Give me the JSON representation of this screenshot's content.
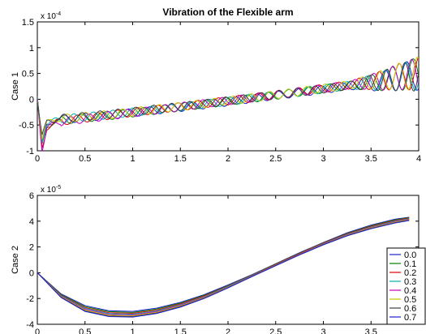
{
  "chart_data": [
    {
      "type": "line",
      "title": "Vibration of the Flexible arm",
      "ylabel": "Case 1",
      "xlabel": "",
      "xlim": [
        0,
        4
      ],
      "ylim": [
        -1,
        1.5
      ],
      "y_exponent_label": {
        "base": "x 10",
        "exp": "-4"
      },
      "x_ticks": [
        "0",
        "0.5",
        "1",
        "1.5",
        "2",
        "2.5",
        "3",
        "3.5",
        "4"
      ],
      "y_ticks": [
        "-1",
        "-0.5",
        "0",
        "0.5",
        "1",
        "1.5"
      ],
      "series": [
        {
          "color": "#1f1fcf",
          "x": [
            0,
            0.05,
            0.1,
            0.2,
            0.4,
            0.8,
            1.2,
            1.6,
            2.0,
            2.4,
            2.8,
            3.2,
            3.6,
            3.8,
            4.0
          ],
          "y": [
            0,
            -0.85,
            -0.5,
            -0.4,
            -0.37,
            -0.3,
            -0.22,
            -0.14,
            -0.05,
            0.05,
            0.14,
            0.24,
            0.34,
            0.42,
            0.5
          ]
        },
        {
          "color": "#008000",
          "x": [
            0,
            0.05,
            0.1,
            0.2,
            0.4,
            0.8,
            1.2,
            1.6,
            2.0,
            2.4,
            2.8,
            3.2,
            3.6,
            3.8,
            4.0
          ],
          "y": [
            0,
            -0.9,
            -0.52,
            -0.42,
            -0.38,
            -0.31,
            -0.22,
            -0.13,
            -0.04,
            0.05,
            0.15,
            0.25,
            0.35,
            0.43,
            0.5
          ]
        },
        {
          "color": "#e00000",
          "x": [
            0,
            0.05,
            0.1,
            0.2,
            0.4,
            0.8,
            1.2,
            1.6,
            2.0,
            2.4,
            2.8,
            3.2,
            3.6,
            3.8,
            4.0
          ],
          "y": [
            0,
            -0.95,
            -0.55,
            -0.44,
            -0.39,
            -0.3,
            -0.21,
            -0.12,
            -0.03,
            0.06,
            0.16,
            0.26,
            0.36,
            0.44,
            0.5
          ]
        },
        {
          "color": "#00b0b0",
          "x": [
            0,
            0.05,
            0.1,
            0.2,
            0.4,
            0.8,
            1.2,
            1.6,
            2.0,
            2.4,
            2.8,
            3.2,
            3.6,
            3.8,
            4.0
          ],
          "y": [
            0,
            -0.8,
            -0.48,
            -0.4,
            -0.36,
            -0.29,
            -0.21,
            -0.13,
            -0.04,
            0.06,
            0.15,
            0.25,
            0.35,
            0.42,
            0.5
          ]
        },
        {
          "color": "#c000c0",
          "x": [
            0,
            0.05,
            0.1,
            0.2,
            0.4,
            0.8,
            1.2,
            1.6,
            2.0,
            2.4,
            2.8,
            3.2,
            3.6,
            3.8,
            4.0
          ],
          "y": [
            0,
            -0.98,
            -0.56,
            -0.45,
            -0.4,
            -0.31,
            -0.22,
            -0.12,
            -0.03,
            0.06,
            0.16,
            0.26,
            0.36,
            0.44,
            0.5
          ]
        },
        {
          "color": "#c8c800",
          "x": [
            0,
            0.05,
            0.1,
            0.2,
            0.4,
            0.8,
            1.2,
            1.6,
            2.0,
            2.4,
            2.8,
            3.2,
            3.6,
            3.8,
            4.0
          ],
          "y": [
            0,
            -0.75,
            -0.46,
            -0.39,
            -0.35,
            -0.29,
            -0.2,
            -0.12,
            -0.03,
            0.06,
            0.16,
            0.26,
            0.37,
            0.45,
            0.5
          ]
        },
        {
          "color": "#404040",
          "x": [
            0,
            0.05,
            0.1,
            0.2,
            0.4,
            0.8,
            1.2,
            1.6,
            2.0,
            2.4,
            2.8,
            3.2,
            3.6,
            3.8,
            4.0
          ],
          "y": [
            0,
            -0.7,
            -0.45,
            -0.38,
            -0.35,
            -0.28,
            -0.2,
            -0.12,
            -0.03,
            0.06,
            0.15,
            0.25,
            0.35,
            0.42,
            0.48
          ]
        }
      ],
      "grid": false
    },
    {
      "type": "line",
      "title": "",
      "ylabel": "Case 2",
      "xlabel": "",
      "xlim": [
        0,
        4
      ],
      "ylim": [
        -4,
        6
      ],
      "y_exponent_label": {
        "base": "x 10",
        "exp": "-5"
      },
      "x_ticks": [
        "0",
        "0.5",
        "1",
        "1.5",
        "2",
        "2.5",
        "3",
        "3.5"
      ],
      "y_ticks": [
        "-4",
        "-2",
        "0",
        "2",
        "4",
        "6"
      ],
      "legend": {
        "position": "bottom-right",
        "entries": [
          "0.0",
          "0.1",
          "0.2",
          "0.3",
          "0.4",
          "0.5",
          "0.6",
          "0.7"
        ]
      },
      "series": [
        {
          "name": "0.0",
          "color": "#1f1fcf",
          "x": [
            0,
            0.25,
            0.5,
            0.75,
            1.0,
            1.25,
            1.5,
            1.75,
            2.0,
            2.25,
            2.5,
            2.75,
            3.0,
            3.25,
            3.5,
            3.75,
            3.9
          ],
          "y": [
            0,
            -1.65,
            -2.55,
            -2.95,
            -3.0,
            -2.75,
            -2.3,
            -1.7,
            -0.95,
            -0.15,
            0.7,
            1.55,
            2.35,
            3.1,
            3.7,
            4.15,
            4.3
          ]
        },
        {
          "name": "0.1",
          "color": "#008000",
          "x": [
            0,
            0.25,
            0.5,
            0.75,
            1.0,
            1.25,
            1.5,
            1.75,
            2.0,
            2.25,
            2.5,
            2.75,
            3.0,
            3.25,
            3.5,
            3.75,
            3.9
          ],
          "y": [
            0,
            -1.7,
            -2.62,
            -3.02,
            -3.08,
            -2.82,
            -2.36,
            -1.75,
            -1.0,
            -0.18,
            0.68,
            1.52,
            2.32,
            3.05,
            3.65,
            4.1,
            4.28
          ]
        },
        {
          "name": "0.2",
          "color": "#e00000",
          "x": [
            0,
            0.25,
            0.5,
            0.75,
            1.0,
            1.25,
            1.5,
            1.75,
            2.0,
            2.25,
            2.5,
            2.75,
            3.0,
            3.25,
            3.5,
            3.75,
            3.9
          ],
          "y": [
            0,
            -1.75,
            -2.7,
            -3.1,
            -3.15,
            -2.9,
            -2.42,
            -1.8,
            -1.03,
            -0.2,
            0.65,
            1.5,
            2.3,
            3.02,
            3.6,
            4.05,
            4.25
          ]
        },
        {
          "name": "0.3",
          "color": "#00b0b0",
          "x": [
            0,
            0.25,
            0.5,
            0.75,
            1.0,
            1.25,
            1.5,
            1.75,
            2.0,
            2.25,
            2.5,
            2.75,
            3.0,
            3.25,
            3.5,
            3.75,
            3.9
          ],
          "y": [
            0,
            -1.78,
            -2.76,
            -3.17,
            -3.22,
            -2.96,
            -2.48,
            -1.85,
            -1.06,
            -0.22,
            0.62,
            1.46,
            2.26,
            2.98,
            3.56,
            4.0,
            4.2
          ]
        },
        {
          "name": "0.4",
          "color": "#c000c0",
          "x": [
            0,
            0.25,
            0.5,
            0.75,
            1.0,
            1.25,
            1.5,
            1.75,
            2.0,
            2.25,
            2.5,
            2.75,
            3.0,
            3.25,
            3.5,
            3.75,
            3.9
          ],
          "y": [
            0,
            -1.82,
            -2.83,
            -3.24,
            -3.28,
            -3.02,
            -2.53,
            -1.89,
            -1.1,
            -0.25,
            0.6,
            1.44,
            2.23,
            2.95,
            3.52,
            3.96,
            4.16
          ]
        },
        {
          "name": "0.5",
          "color": "#c8c800",
          "x": [
            0,
            0.25,
            0.5,
            0.75,
            1.0,
            1.25,
            1.5,
            1.75,
            2.0,
            2.25,
            2.5,
            2.75,
            3.0,
            3.25,
            3.5,
            3.75,
            3.9
          ],
          "y": [
            0,
            -1.86,
            -2.9,
            -3.3,
            -3.34,
            -3.08,
            -2.58,
            -1.93,
            -1.13,
            -0.27,
            0.58,
            1.42,
            2.2,
            2.92,
            3.48,
            3.92,
            4.12
          ]
        },
        {
          "name": "0.6",
          "color": "#404040",
          "x": [
            0,
            0.25,
            0.5,
            0.75,
            1.0,
            1.25,
            1.5,
            1.75,
            2.0,
            2.25,
            2.5,
            2.75,
            3.0,
            3.25,
            3.5,
            3.75,
            3.9
          ],
          "y": [
            0,
            -1.9,
            -2.96,
            -3.36,
            -3.4,
            -3.13,
            -2.63,
            -1.97,
            -1.16,
            -0.29,
            0.56,
            1.4,
            2.18,
            2.89,
            3.44,
            3.88,
            4.08
          ]
        },
        {
          "name": "0.7",
          "color": "#1f1fcf",
          "x": [
            0,
            0.25,
            0.5,
            0.75,
            1.0,
            1.25,
            1.5,
            1.75,
            2.0,
            2.25,
            2.5,
            2.75,
            3.0,
            3.25,
            3.5,
            3.75,
            3.9
          ],
          "y": [
            0,
            -1.93,
            -3.0,
            -3.4,
            -3.44,
            -3.17,
            -2.67,
            -2.0,
            -1.18,
            -0.31,
            0.54,
            1.38,
            2.16,
            2.86,
            3.41,
            3.85,
            4.05
          ]
        }
      ],
      "grid": false
    }
  ]
}
